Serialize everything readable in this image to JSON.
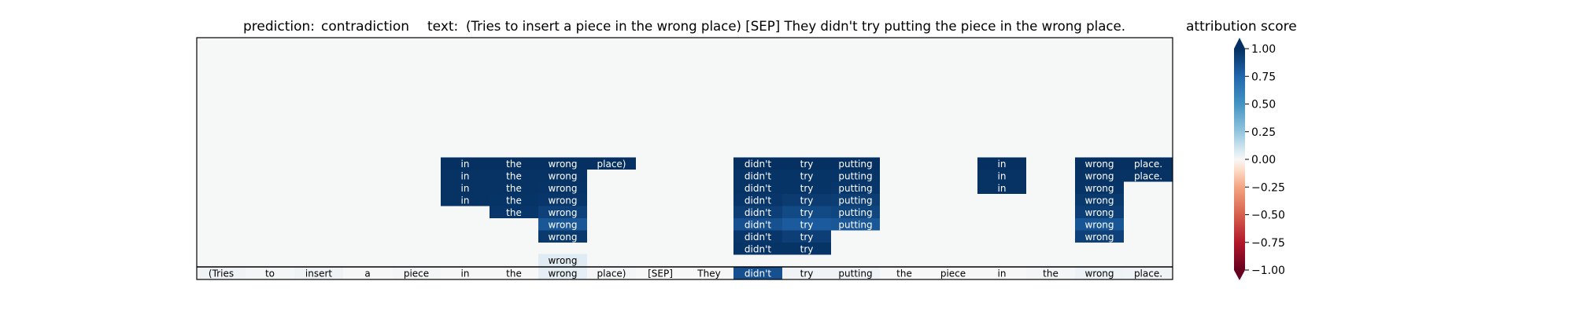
{
  "header": {
    "prediction_label": "prediction:",
    "prediction_value": "contradiction",
    "text_label": "text:",
    "text_value": "(Tries to insert a piece in the wrong place) [SEP] They didn't try putting the piece in the wrong place."
  },
  "chart_data": {
    "type": "heatmap",
    "tokens": [
      "(Tries",
      "to",
      "insert",
      "a",
      "piece",
      "in",
      "the",
      "wrong",
      "place)",
      "[SEP]",
      "They",
      "didn't",
      "try",
      "putting",
      "the",
      "piece",
      "in",
      "the",
      "wrong",
      "place."
    ],
    "bottom_row_scores": [
      0.02,
      0.01,
      0.02,
      0.0,
      0.01,
      0.0,
      0.0,
      0.05,
      0.01,
      0.0,
      0.0,
      0.85,
      0.02,
      0.02,
      0.0,
      0.0,
      0.0,
      0.01,
      0.03,
      0.02
    ],
    "layers": [
      {
        "tokens": [
          7
        ],
        "scores": [
          0.06
        ]
      },
      {
        "tokens": [
          11,
          12
        ],
        "scores": [
          0.98,
          0.98
        ]
      },
      {
        "tokens": [
          7,
          11,
          12,
          18
        ],
        "scores": [
          0.96,
          0.97,
          0.93,
          0.92
        ]
      },
      {
        "tokens": [
          7,
          11,
          12,
          13,
          18
        ],
        "scores": [
          0.82,
          0.85,
          0.8,
          0.82,
          0.83
        ]
      },
      {
        "tokens": [
          6,
          7,
          11,
          12,
          13,
          18
        ],
        "scores": [
          0.97,
          0.92,
          0.93,
          0.88,
          0.9,
          0.93
        ]
      },
      {
        "tokens": [
          5,
          6,
          7,
          11,
          12,
          13,
          18
        ],
        "scores": [
          0.99,
          0.98,
          0.97,
          0.97,
          0.95,
          0.94,
          0.96
        ]
      },
      {
        "tokens": [
          5,
          6,
          7,
          11,
          12,
          13,
          16,
          18
        ],
        "scores": [
          0.99,
          0.99,
          0.98,
          0.98,
          0.98,
          0.97,
          0.99,
          0.98
        ]
      },
      {
        "tokens": [
          5,
          6,
          7,
          11,
          12,
          13,
          16,
          18,
          19
        ],
        "scores": [
          0.99,
          0.99,
          0.99,
          0.98,
          0.98,
          0.98,
          0.99,
          0.99,
          0.99
        ]
      },
      {
        "tokens": [
          5,
          6,
          7,
          8,
          11,
          12,
          13,
          16,
          18,
          19
        ],
        "scores": [
          1.0,
          1.0,
          1.0,
          1.0,
          1.0,
          1.0,
          1.0,
          1.0,
          1.0,
          1.0
        ]
      }
    ],
    "colorbar": {
      "title": "attribution score",
      "range": [
        -1,
        1
      ],
      "ticks": [
        "1.00",
        "0.75",
        "0.50",
        "0.25",
        "0.00",
        "−0.25",
        "−0.50",
        "−0.75",
        "−1.00"
      ],
      "colormap": "RdBu",
      "extend": "both"
    },
    "colors": {
      "background": "#f6f7f7",
      "border": "#000000"
    }
  }
}
